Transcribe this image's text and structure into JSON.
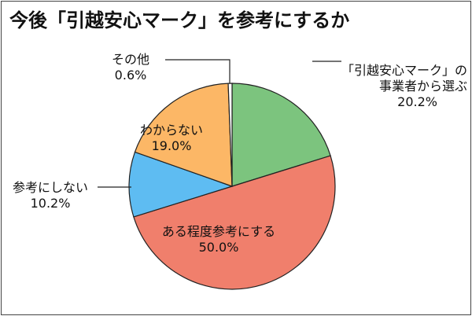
{
  "chart_data": {
    "type": "pie",
    "title": "今後「引越安心マーク」を参考にするか",
    "slices": [
      {
        "label_lines": [
          "「引越安心マーク」の",
          "事業者から選ぶ"
        ],
        "value_text": "20.2%",
        "value": 20.2,
        "color": "#7cc47e"
      },
      {
        "label_lines": [
          "ある程度参考にする"
        ],
        "value_text": "50.0%",
        "value": 50.0,
        "color": "#f07f6c"
      },
      {
        "label_lines": [
          "参考にしない"
        ],
        "value_text": "10.2%",
        "value": 10.2,
        "color": "#5ebcf2"
      },
      {
        "label_lines": [
          "わからない"
        ],
        "value_text": "19.0%",
        "value": 19.0,
        "color": "#fcb766"
      },
      {
        "label_lines": [
          "その他"
        ],
        "value_text": "0.6%",
        "value": 0.6,
        "color": "#ffffff"
      }
    ],
    "start_angle": "12 o'clock",
    "direction": "clockwise",
    "legend": "none"
  }
}
